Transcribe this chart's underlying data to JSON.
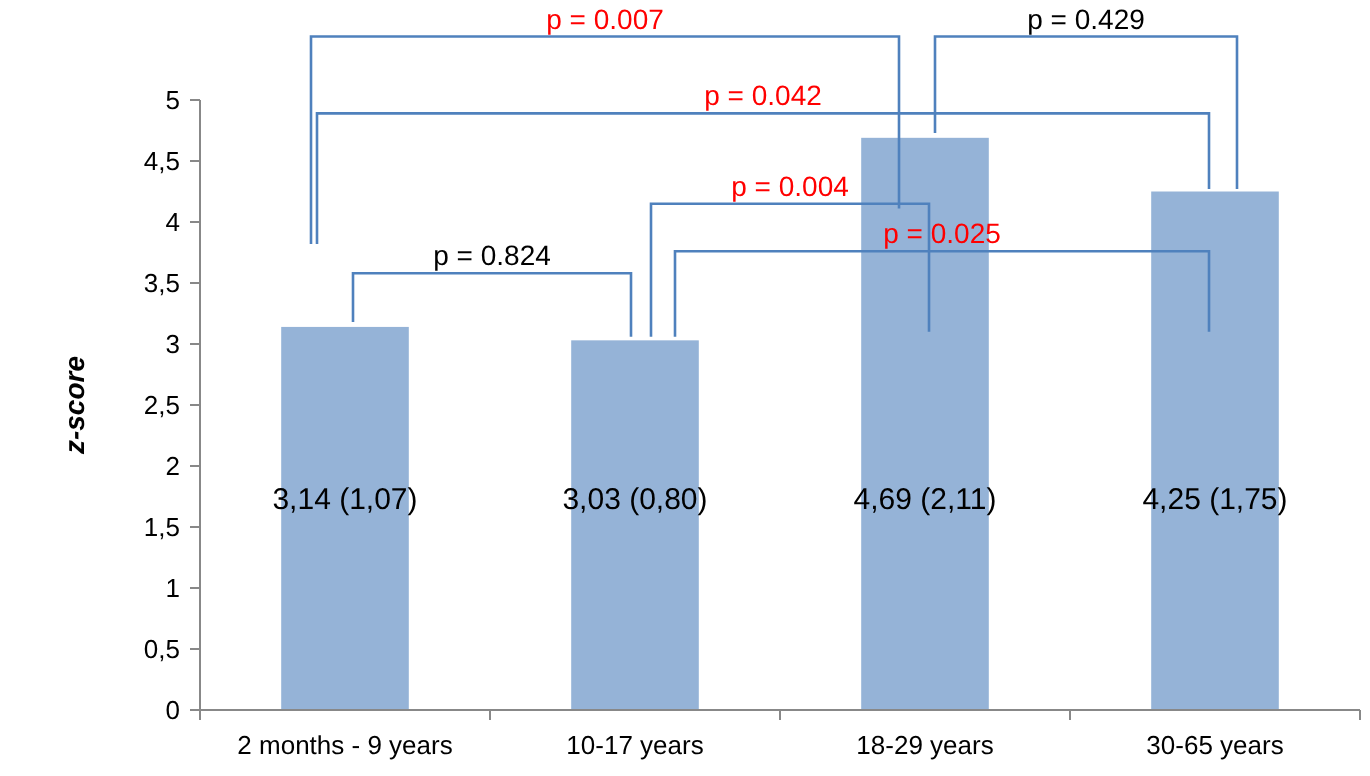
{
  "chart_data": {
    "type": "bar",
    "ylabel": "z-score",
    "categories": [
      "2 months - 9 years",
      "10-17 years",
      "18-29 years",
      "30-65 years"
    ],
    "values": [
      3.14,
      3.03,
      4.69,
      4.25
    ],
    "color": "#95b3d7",
    "value_labels": [
      "3,14 (1,07)",
      "3,03 (0,80)",
      "4,69 (2,11)",
      "4,25 (1,75)"
    ],
    "ylim": [
      0,
      5
    ],
    "yticks": [
      0,
      {
        "value": 0.5,
        "label": "0,5"
      },
      1,
      {
        "value": 1.5,
        "label": "1,5"
      },
      2,
      {
        "value": 2.5,
        "label": "2,5"
      },
      3,
      {
        "value": 3.5,
        "label": "3,5"
      },
      4,
      {
        "value": 4.5,
        "label": "4,5"
      },
      5
    ],
    "grid": false,
    "annotations": [
      "p = 0.007",
      "p = 0.429",
      "p = 0.042",
      "p = 0.824",
      "p = 0.004",
      "p = 0.025"
    ]
  }
}
